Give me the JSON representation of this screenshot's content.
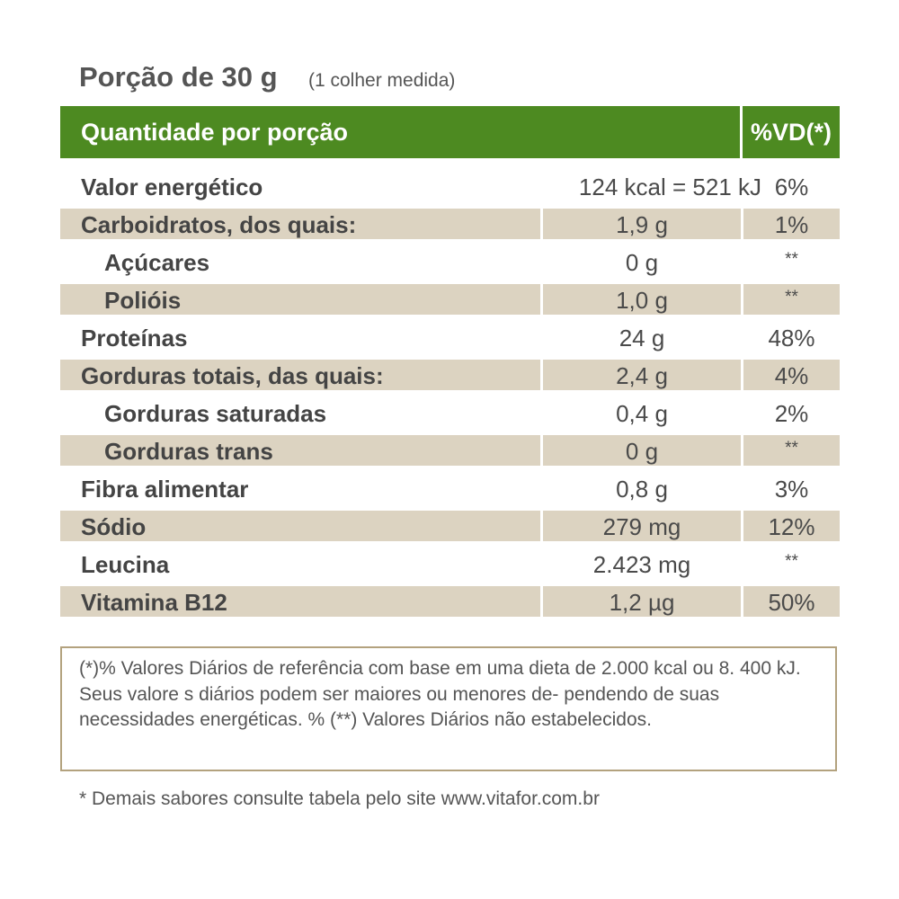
{
  "portion": {
    "main": "Porção de 30 g",
    "sub": "(1 colher medida)"
  },
  "header": {
    "left": "Quantidade por porção",
    "right": "%VD(*)"
  },
  "rows": [
    {
      "name": "Valor energético",
      "value": "124 kcal = 521 kJ",
      "vd": "6%"
    },
    {
      "name": "Carboidratos, dos quais:",
      "value": "1,9 g",
      "vd": "1%"
    },
    {
      "name": "Açúcares",
      "value": "0 g",
      "vd": "**"
    },
    {
      "name": "Polióis",
      "value": "1,0 g",
      "vd": "**"
    },
    {
      "name": "Proteínas",
      "value": "24 g",
      "vd": "48%"
    },
    {
      "name": "Gorduras totais, das quais:",
      "value": "2,4 g",
      "vd": "4%"
    },
    {
      "name": "Gorduras saturadas",
      "value": "0,4 g",
      "vd": "2%"
    },
    {
      "name": "Gorduras trans",
      "value": "0 g",
      "vd": "**"
    },
    {
      "name": "Fibra alimentar",
      "value": "0,8 g",
      "vd": "3%"
    },
    {
      "name": "Sódio",
      "value": "279 mg",
      "vd": "12%"
    },
    {
      "name": "Leucina",
      "value": "2.423 mg",
      "vd": "**"
    },
    {
      "name": "Vitamina B12",
      "value": "1,2 µg",
      "vd": "50%"
    }
  ],
  "footnote": "(*)% Valores Diários de referência com base em uma dieta de 2.000 kcal ou 8. 400 kJ. Seus valore s diários podem ser maiores ou menores de- pendendo de suas necessidades energéticas. % (**) Valores Diários não estabelecidos.",
  "disclaimer": "* Demais sabores consulte tabela pelo site www.vitafor.com.br"
}
